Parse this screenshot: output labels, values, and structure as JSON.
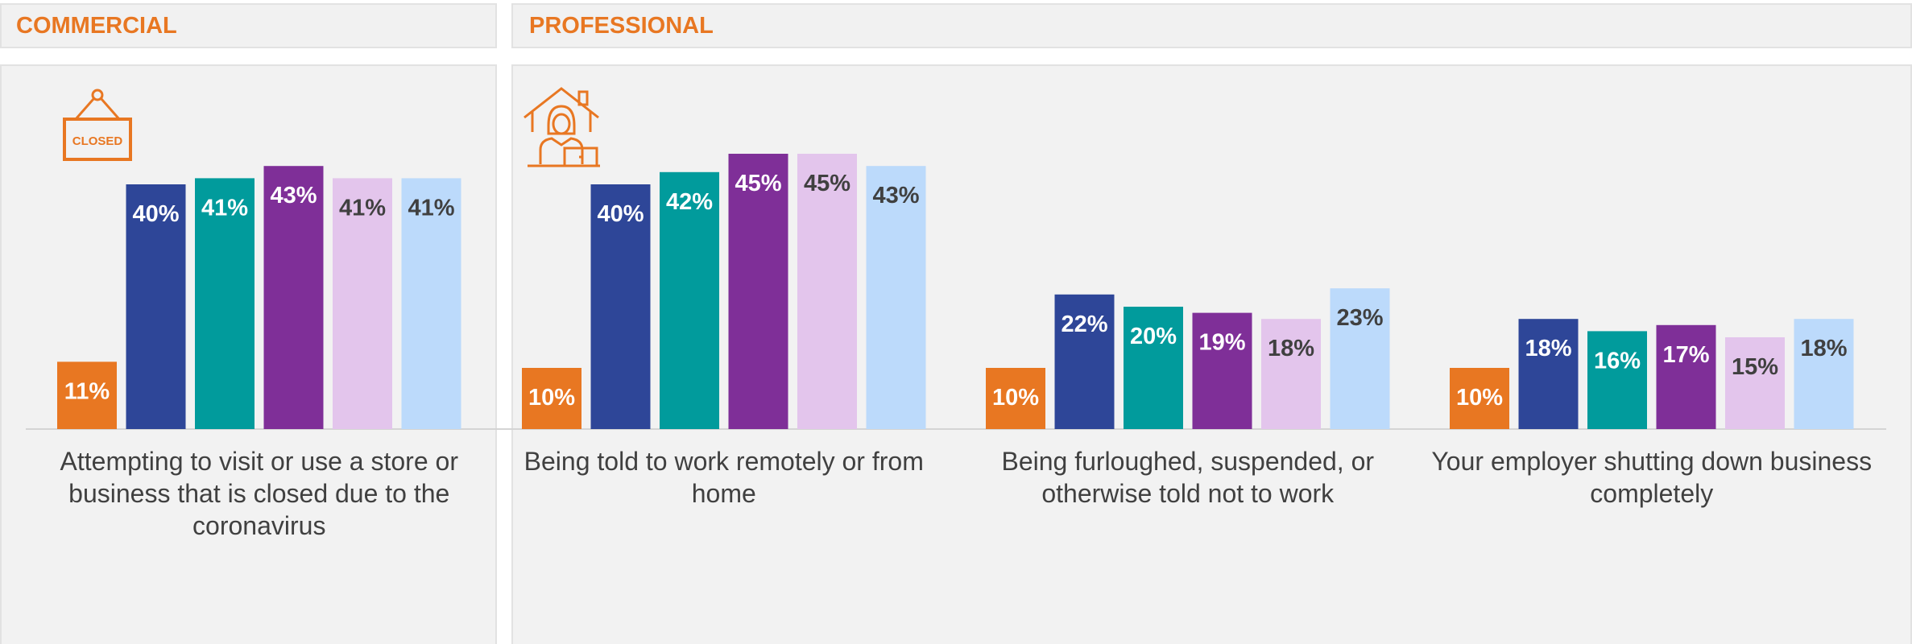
{
  "sections": {
    "commercial": "COMMERCIAL",
    "professional": "PROFESSIONAL"
  },
  "icons": {
    "commercial": "closed-sign-icon",
    "professional": "work-from-home-icon",
    "closed_sign_text": "CLOSED"
  },
  "colors": {
    "accent": "#e87722",
    "series": [
      "#e87722",
      "#2e4698",
      "#019b9c",
      "#7f2f98",
      "#e3c5ec",
      "#bcdafb"
    ],
    "label_text": [
      "#ffffff",
      "#ffffff",
      "#ffffff",
      "#ffffff",
      "#404040",
      "#404040"
    ]
  },
  "chart_data": {
    "type": "bar",
    "categories": [
      "Attempting to visit or use a store or business that is closed due to the coronavirus",
      "Being told to work remotely or from home",
      "Being furloughed, suspended, or otherwise told not to work",
      "Your employer shutting down business completely"
    ],
    "series_values": [
      [
        11,
        40,
        41,
        43,
        41,
        41
      ],
      [
        10,
        40,
        42,
        45,
        45,
        43
      ],
      [
        10,
        22,
        20,
        19,
        18,
        23
      ],
      [
        10,
        18,
        16,
        17,
        15,
        18
      ]
    ],
    "value_suffix": "%",
    "grid": false,
    "legend": "none"
  }
}
